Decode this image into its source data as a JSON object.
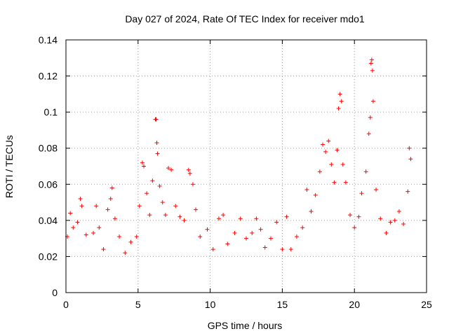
{
  "chart_data": {
    "type": "scatter",
    "title": "Day 027 of 2024, Rate Of TEC Index for receiver mdo1",
    "xlabel": "GPS time / hours",
    "ylabel": "ROTI / TECUs",
    "xlim": [
      0,
      25
    ],
    "ylim": [
      0,
      0.14
    ],
    "x_ticks": [
      0,
      5,
      10,
      15,
      20,
      25
    ],
    "y_ticks": [
      0,
      0.02,
      0.04,
      0.06,
      0.08,
      0.1,
      0.12,
      0.14
    ],
    "x_tick_labels": [
      "0",
      "5",
      "10",
      "15",
      "20",
      "25"
    ],
    "y_tick_labels": [
      "0",
      "0.02",
      "0.04",
      "0.06",
      "0.08",
      "0.1",
      "0.12",
      "0.14"
    ],
    "grid": true,
    "marker": "+",
    "marker_color": "#ff0000",
    "grid_color": "#a0a0a0",
    "series": [
      {
        "points": [
          [
            0.1,
            0.031
          ],
          [
            0.3,
            0.044
          ],
          [
            0.5,
            0.036
          ],
          [
            0.8,
            0.039
          ],
          [
            1.0,
            0.052
          ],
          [
            1.1,
            0.048
          ],
          [
            1.4,
            0.032
          ],
          [
            1.9,
            0.033
          ],
          [
            2.1,
            0.048
          ],
          [
            2.3,
            0.036
          ],
          [
            2.6,
            0.024
          ],
          [
            2.9,
            0.046
          ],
          [
            3.1,
            0.052
          ],
          [
            3.2,
            0.058
          ],
          [
            3.4,
            0.041
          ],
          [
            3.7,
            0.031
          ],
          [
            4.1,
            0.022
          ],
          [
            4.5,
            0.028
          ],
          [
            4.9,
            0.031
          ],
          [
            5.1,
            0.048
          ],
          [
            5.3,
            0.072
          ],
          [
            5.4,
            0.07
          ],
          [
            5.6,
            0.055
          ],
          [
            5.8,
            0.043
          ],
          [
            6.0,
            0.062
          ],
          [
            6.2,
            0.096
          ],
          [
            6.25,
            0.096
          ],
          [
            6.3,
            0.083
          ],
          [
            6.35,
            0.077
          ],
          [
            6.5,
            0.059
          ],
          [
            6.7,
            0.05
          ],
          [
            6.9,
            0.043
          ],
          [
            7.1,
            0.069
          ],
          [
            7.3,
            0.068
          ],
          [
            7.6,
            0.048
          ],
          [
            7.9,
            0.042
          ],
          [
            8.2,
            0.04
          ],
          [
            8.5,
            0.068
          ],
          [
            8.6,
            0.066
          ],
          [
            8.8,
            0.06
          ],
          [
            9.0,
            0.046
          ],
          [
            9.3,
            0.031
          ],
          [
            9.8,
            0.035
          ],
          [
            10.2,
            0.024
          ],
          [
            10.6,
            0.041
          ],
          [
            10.9,
            0.043
          ],
          [
            11.2,
            0.027
          ],
          [
            11.7,
            0.033
          ],
          [
            12.1,
            0.041
          ],
          [
            12.5,
            0.03
          ],
          [
            12.9,
            0.033
          ],
          [
            13.2,
            0.041
          ],
          [
            13.5,
            0.035
          ],
          [
            13.8,
            0.025
          ],
          [
            14.2,
            0.03
          ],
          [
            14.6,
            0.039
          ],
          [
            15.0,
            0.024
          ],
          [
            15.3,
            0.042
          ],
          [
            15.6,
            0.024
          ],
          [
            16.0,
            0.031
          ],
          [
            16.4,
            0.036
          ],
          [
            16.7,
            0.057
          ],
          [
            17.0,
            0.045
          ],
          [
            17.3,
            0.054
          ],
          [
            17.6,
            0.067
          ],
          [
            17.8,
            0.082
          ],
          [
            18.0,
            0.078
          ],
          [
            18.2,
            0.084
          ],
          [
            18.4,
            0.071
          ],
          [
            18.6,
            0.061
          ],
          [
            18.8,
            0.079
          ],
          [
            18.9,
            0.102
          ],
          [
            19.0,
            0.11
          ],
          [
            19.1,
            0.106
          ],
          [
            19.2,
            0.071
          ],
          [
            19.4,
            0.061
          ],
          [
            19.7,
            0.043
          ],
          [
            20.0,
            0.036
          ],
          [
            20.3,
            0.042
          ],
          [
            20.5,
            0.055
          ],
          [
            20.8,
            0.067
          ],
          [
            21.0,
            0.088
          ],
          [
            21.1,
            0.097
          ],
          [
            21.15,
            0.127
          ],
          [
            21.2,
            0.129
          ],
          [
            21.25,
            0.123
          ],
          [
            21.3,
            0.106
          ],
          [
            21.5,
            0.057
          ],
          [
            21.8,
            0.041
          ],
          [
            22.2,
            0.033
          ],
          [
            22.5,
            0.039
          ],
          [
            22.8,
            0.04
          ],
          [
            23.1,
            0.045
          ],
          [
            23.4,
            0.038
          ],
          [
            23.7,
            0.056
          ],
          [
            23.8,
            0.08
          ],
          [
            23.9,
            0.074
          ]
        ]
      }
    ]
  }
}
